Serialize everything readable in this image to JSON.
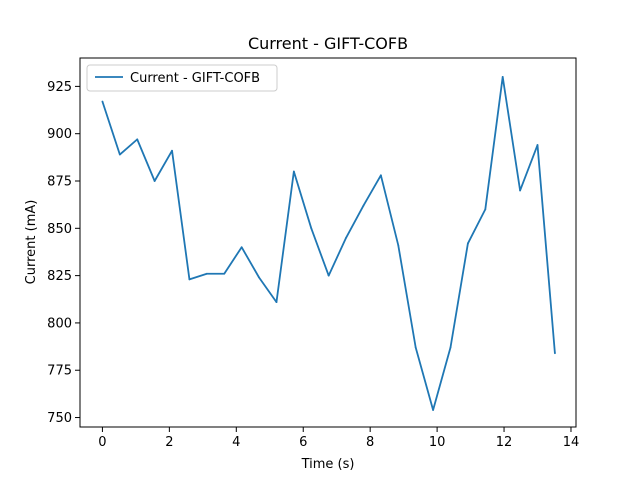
{
  "chart_data": {
    "type": "line",
    "title": "Current - GIFT-COFB",
    "xlabel": "Time (s)",
    "ylabel": "Current (mA)",
    "xlim": [
      -0.67,
      14.15
    ],
    "ylim": [
      745,
      940
    ],
    "xticks": [
      0,
      2,
      4,
      6,
      8,
      10,
      12,
      14
    ],
    "yticks": [
      750,
      775,
      800,
      825,
      850,
      875,
      900,
      925
    ],
    "grid": false,
    "legend_position": "top-left",
    "series": [
      {
        "name": "Current - GIFT-COFB",
        "color": "#1f77b4",
        "x": [
          0.0,
          0.52,
          1.04,
          1.56,
          2.08,
          2.6,
          3.12,
          3.64,
          4.16,
          4.68,
          5.2,
          5.72,
          6.24,
          6.76,
          7.28,
          7.8,
          8.32,
          8.84,
          9.36,
          9.88,
          10.4,
          10.92,
          11.44,
          11.96,
          12.48,
          13.0,
          13.52
        ],
        "y": [
          917,
          889,
          897,
          875,
          891,
          823,
          826,
          826,
          840,
          824,
          811,
          880,
          850,
          825,
          845,
          862,
          878,
          841,
          787,
          754,
          787,
          842,
          860,
          930,
          870,
          894,
          784
        ]
      }
    ]
  }
}
